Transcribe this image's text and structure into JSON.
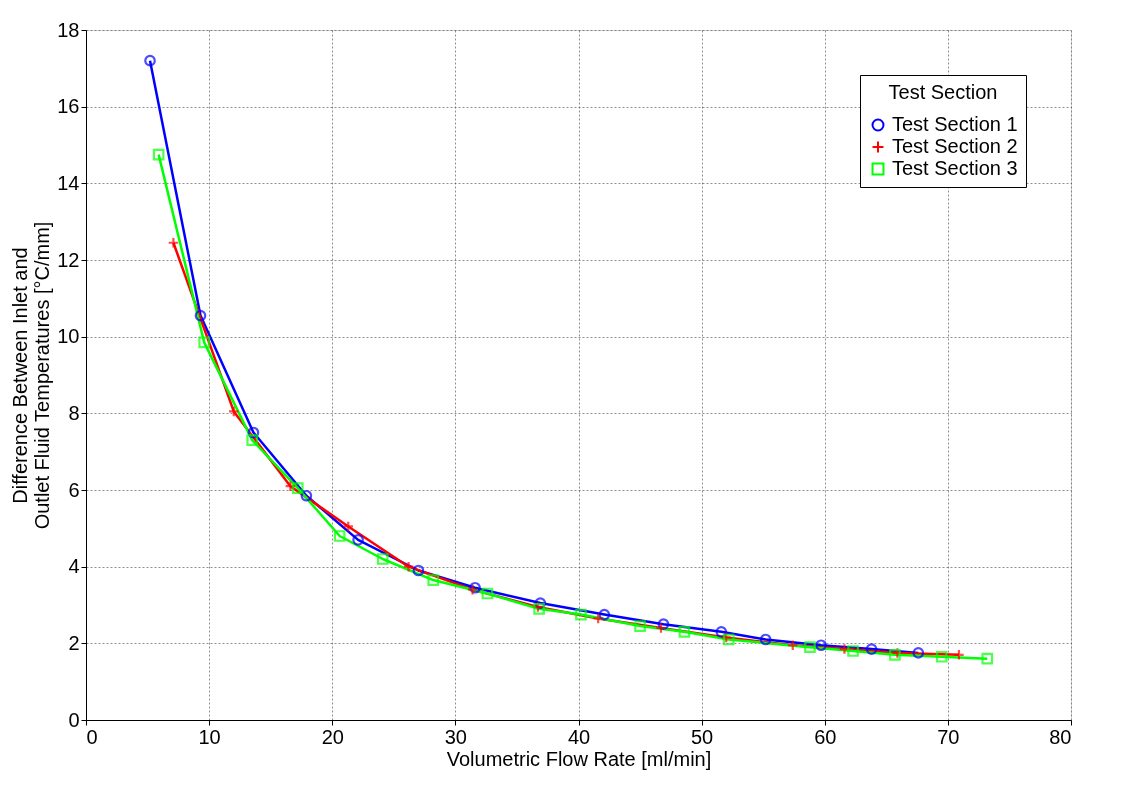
{
  "chart_data": {
    "type": "line",
    "xlabel": "Volumetric Flow Rate [ml/min]",
    "ylabel": "Difference Between Inlet and\nOutlet Fluid Temperatures [°C/mm]",
    "legend_title": "Test Section",
    "legend": "top right",
    "grid": true,
    "line_style": "solid",
    "xlim": [
      0,
      80
    ],
    "xticks": [
      0,
      10,
      20,
      30,
      40,
      50,
      60,
      70,
      80
    ],
    "ylim": [
      0,
      18
    ],
    "yticks": [
      0,
      2,
      4,
      6,
      8,
      10,
      12,
      14,
      16,
      18
    ],
    "series": [
      {
        "name": "Test Section 1",
        "color": "#0000ff",
        "marker": "circle",
        "x": [
          5.2,
          9.3,
          13.6,
          17.9,
          22.1,
          27.0,
          31.6,
          36.9,
          42.1,
          46.9,
          51.6,
          55.2,
          59.7,
          63.8,
          67.6
        ],
        "values": [
          17.2,
          10.55,
          7.5,
          5.85,
          4.7,
          3.9,
          3.45,
          3.05,
          2.75,
          2.5,
          2.3,
          2.1,
          1.95,
          1.85,
          1.75
        ]
      },
      {
        "name": "Test Section 2",
        "color": "#ff0000",
        "marker": "cross",
        "x": [
          7.1,
          12.0,
          16.6,
          21.3,
          26.2,
          31.4,
          36.7,
          41.6,
          46.7,
          52.0,
          57.4,
          61.6,
          65.9,
          70.9
        ],
        "values": [
          12.45,
          8.05,
          6.1,
          5.05,
          4.0,
          3.4,
          2.95,
          2.65,
          2.4,
          2.15,
          1.95,
          1.85,
          1.75,
          1.7
        ]
      },
      {
        "name": "Test Section 3",
        "color": "#00ff00",
        "marker": "square",
        "x": [
          5.9,
          9.6,
          13.5,
          17.2,
          20.6,
          24.1,
          28.2,
          32.6,
          36.8,
          40.2,
          45.0,
          48.6,
          52.2,
          58.8,
          62.3,
          65.7,
          69.5,
          73.2
        ],
        "values": [
          14.75,
          9.85,
          7.3,
          6.05,
          4.8,
          4.2,
          3.65,
          3.3,
          2.9,
          2.75,
          2.45,
          2.3,
          2.1,
          1.9,
          1.8,
          1.7,
          1.65,
          1.6
        ]
      }
    ]
  }
}
